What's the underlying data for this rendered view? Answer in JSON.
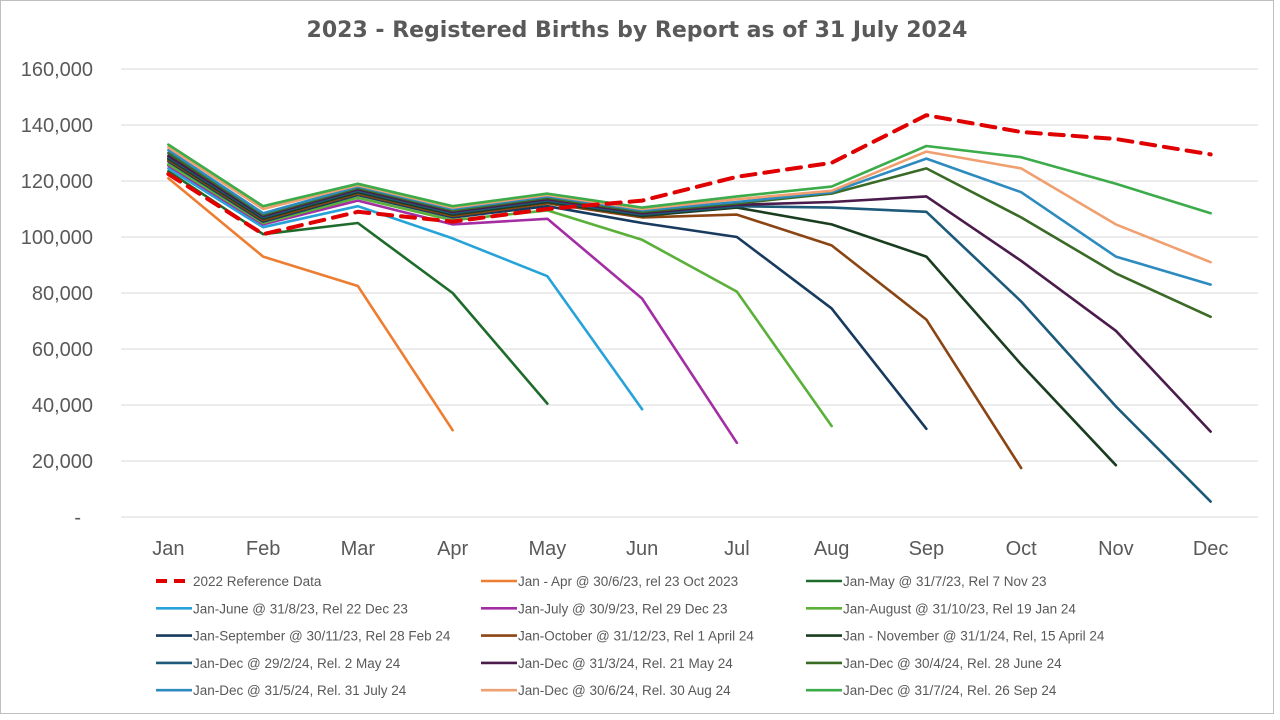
{
  "chart_data": {
    "type": "line",
    "title": "2023 - Registered Births by Report as of 31 July 2024",
    "xlabel": "",
    "ylabel": "",
    "categories": [
      "Jan",
      "Feb",
      "Mar",
      "Apr",
      "May",
      "Jun",
      "Jul",
      "Aug",
      "Sep",
      "Oct",
      "Nov",
      "Dec"
    ],
    "yticks": [
      "-",
      "20,000",
      "40,000",
      "60,000",
      "80,000",
      "100,000",
      "120,000",
      "140,000",
      "160,000"
    ],
    "ylim": [
      0,
      160000
    ],
    "grid": true,
    "legend_position": "bottom",
    "series": [
      {
        "name": "2022 Reference Data",
        "color": "#e00000",
        "dashed": true,
        "values": [
          122500,
          101000,
          109000,
          105500,
          110000,
          113000,
          121500,
          126500,
          143500,
          137500,
          135000,
          129500
        ]
      },
      {
        "name": "Jan - Apr @ 30/6/23, rel 23 Oct 2023",
        "color": "#ed7d31",
        "dashed": false,
        "values": [
          121000,
          93000,
          82500,
          31000,
          null,
          null,
          null,
          null,
          null,
          null,
          null,
          null
        ]
      },
      {
        "name": "Jan-May @ 31/7/23, Rel 7 Nov 23",
        "color": "#1e6b2b",
        "dashed": false,
        "values": [
          123500,
          101000,
          105000,
          80000,
          40500,
          null,
          null,
          null,
          null,
          null,
          null,
          null
        ]
      },
      {
        "name": "Jan-June @ 31/8/23, Rel 22 Dec 23",
        "color": "#27a3d9",
        "dashed": false,
        "values": [
          124500,
          103500,
          111000,
          99500,
          86000,
          38500,
          null,
          null,
          null,
          null,
          null,
          null
        ]
      },
      {
        "name": "Jan-July @ 30/9/23, Rel 29 Dec 23",
        "color": "#a32ea3",
        "dashed": false,
        "values": [
          125500,
          104500,
          113000,
          104500,
          106500,
          78000,
          26500,
          null,
          null,
          null,
          null,
          null
        ]
      },
      {
        "name": "Jan-August @ 31/10/23, Rel 19 Jan 24",
        "color": "#5ab039",
        "dashed": false,
        "values": [
          126000,
          105000,
          114000,
          106000,
          109500,
          99000,
          80500,
          32500,
          null,
          null,
          null,
          null
        ]
      },
      {
        "name": "Jan-September @ 30/11/23, Rel 28 Feb 24",
        "color": "#173a5e",
        "dashed": false,
        "values": [
          127000,
          105500,
          115000,
          107000,
          111000,
          105000,
          100000,
          74500,
          31500,
          null,
          null,
          null
        ]
      },
      {
        "name": "Jan-October @ 31/12/23, Rel 1 April 24",
        "color": "#8b4513",
        "dashed": false,
        "values": [
          127500,
          106000,
          115500,
          107500,
          112000,
          107000,
          108000,
          97000,
          70500,
          17500,
          null,
          null
        ]
      },
      {
        "name": "Jan - November @ 31/1/24, Rel, 15 April 24",
        "color": "#1a3d1f",
        "dashed": false,
        "values": [
          128000,
          106500,
          116000,
          108000,
          112500,
          107500,
          110500,
          104500,
          93000,
          54500,
          18500,
          null
        ]
      },
      {
        "name": "Jan-Dec @ 29/2/24, Rel. 2 May 24",
        "color": "#1d5a7a",
        "dashed": false,
        "values": [
          128500,
          107000,
          116500,
          108500,
          113000,
          108000,
          111000,
          110500,
          109000,
          77000,
          39500,
          5500
        ]
      },
      {
        "name": "Jan-Dec @ 31/3/24, Rel. 21 May 24",
        "color": "#4b1c4b",
        "dashed": false,
        "values": [
          129000,
          107500,
          117000,
          109000,
          113500,
          108500,
          111500,
          112500,
          114500,
          91500,
          66500,
          30500
        ]
      },
      {
        "name": "Jan-Dec @ 30/4/24, Rel. 28 June 24",
        "color": "#3a6b26",
        "dashed": false,
        "values": [
          130000,
          108000,
          117500,
          109500,
          114000,
          109000,
          112000,
          115500,
          124500,
          107000,
          87000,
          71500
        ]
      },
      {
        "name": "Jan-Dec @ 31/5/24, Rel. 31 July 24",
        "color": "#2e8bc0",
        "dashed": false,
        "values": [
          131000,
          108500,
          118000,
          110000,
          114500,
          109500,
          112500,
          116000,
          128000,
          116000,
          93000,
          83000
        ]
      },
      {
        "name": "Jan-Dec @ 30/6/24, Rel. 30 Aug 24",
        "color": "#f0a070",
        "dashed": false,
        "values": [
          132000,
          110000,
          118500,
          110500,
          115000,
          110000,
          113500,
          116500,
          130500,
          124500,
          104500,
          91000
        ]
      },
      {
        "name": "Jan-Dec @ 31/7/24, Rel. 26 Sep 24",
        "color": "#3cab4a",
        "dashed": false,
        "values": [
          133000,
          111000,
          119000,
          111000,
          115500,
          110500,
          114500,
          118000,
          132500,
          128500,
          119000,
          108500
        ]
      }
    ]
  }
}
